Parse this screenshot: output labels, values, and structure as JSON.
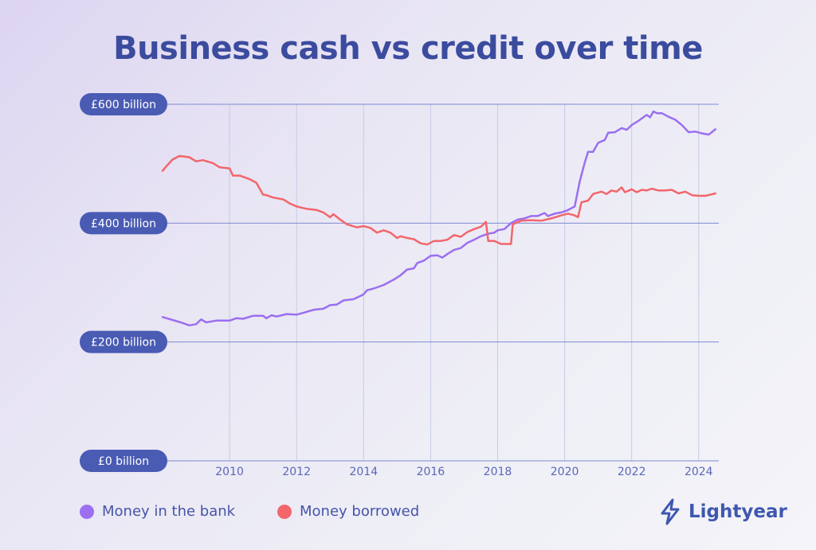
{
  "title": "Business cash vs credit over time",
  "brand": {
    "name": "Lightyear",
    "icon": "lightning-bolt-icon"
  },
  "colors": {
    "bank": "#9b6ff0",
    "borrowed": "#f2666c",
    "axis_label_bg": "#4a5bb4",
    "title": "#3b4b9e",
    "gridline": "#7f8ad0"
  },
  "legend": [
    {
      "label": "Money in the bank",
      "color": "#9b6ff0"
    },
    {
      "label": "Money borrowed",
      "color": "#f2666c"
    }
  ],
  "chart_data": {
    "type": "line",
    "title": "Business cash vs credit over time",
    "xlabel": "",
    "ylabel": "",
    "xlim": [
      2008,
      2024.6
    ],
    "ylim": [
      0,
      600
    ],
    "x_ticks": [
      2010,
      2012,
      2014,
      2016,
      2018,
      2020,
      2022,
      2024
    ],
    "y_ticks": [
      {
        "value": 0,
        "label": "£0 billion"
      },
      {
        "value": 200,
        "label": "£200 billion"
      },
      {
        "value": 400,
        "label": "£400 billion"
      },
      {
        "value": 600,
        "label": "£600 billion"
      }
    ],
    "grid": {
      "horizontal": true,
      "vertical": true
    },
    "legend_position": "bottom-left",
    "series": [
      {
        "name": "Money in the bank",
        "color": "#9b6ff0",
        "points": [
          [
            2008.0,
            242
          ],
          [
            2008.3,
            237
          ],
          [
            2008.6,
            232
          ],
          [
            2008.8,
            228
          ],
          [
            2009.0,
            230
          ],
          [
            2009.15,
            238
          ],
          [
            2009.3,
            233
          ],
          [
            2009.6,
            236
          ],
          [
            2010.0,
            236
          ],
          [
            2010.2,
            240
          ],
          [
            2010.4,
            239
          ],
          [
            2010.7,
            244
          ],
          [
            2011.0,
            244
          ],
          [
            2011.1,
            240
          ],
          [
            2011.25,
            245
          ],
          [
            2011.4,
            243
          ],
          [
            2011.7,
            247
          ],
          [
            2012.0,
            246
          ],
          [
            2012.2,
            249
          ],
          [
            2012.5,
            254
          ],
          [
            2012.8,
            256
          ],
          [
            2013.0,
            262
          ],
          [
            2013.2,
            263
          ],
          [
            2013.4,
            270
          ],
          [
            2013.7,
            272
          ],
          [
            2014.0,
            280
          ],
          [
            2014.1,
            287
          ],
          [
            2014.3,
            290
          ],
          [
            2014.6,
            296
          ],
          [
            2014.9,
            305
          ],
          [
            2015.1,
            312
          ],
          [
            2015.3,
            322
          ],
          [
            2015.5,
            324
          ],
          [
            2015.6,
            333
          ],
          [
            2015.8,
            337
          ],
          [
            2016.0,
            345
          ],
          [
            2016.2,
            346
          ],
          [
            2016.35,
            342
          ],
          [
            2016.5,
            348
          ],
          [
            2016.7,
            355
          ],
          [
            2016.9,
            358
          ],
          [
            2017.1,
            367
          ],
          [
            2017.3,
            372
          ],
          [
            2017.5,
            378
          ],
          [
            2017.7,
            382
          ],
          [
            2017.9,
            384
          ],
          [
            2018.0,
            388
          ],
          [
            2018.2,
            390
          ],
          [
            2018.4,
            400
          ],
          [
            2018.6,
            406
          ],
          [
            2018.8,
            408
          ],
          [
            2019.0,
            412
          ],
          [
            2019.2,
            412
          ],
          [
            2019.4,
            417
          ],
          [
            2019.5,
            412
          ],
          [
            2019.7,
            416
          ],
          [
            2019.9,
            418
          ],
          [
            2020.1,
            422
          ],
          [
            2020.3,
            428
          ],
          [
            2020.45,
            470
          ],
          [
            2020.6,
            502
          ],
          [
            2020.7,
            520
          ],
          [
            2020.85,
            520
          ],
          [
            2021.0,
            535
          ],
          [
            2021.2,
            540
          ],
          [
            2021.3,
            552
          ],
          [
            2021.5,
            553
          ],
          [
            2021.7,
            560
          ],
          [
            2021.85,
            557
          ],
          [
            2022.0,
            565
          ],
          [
            2022.2,
            572
          ],
          [
            2022.35,
            578
          ],
          [
            2022.45,
            582
          ],
          [
            2022.55,
            578
          ],
          [
            2022.65,
            588
          ],
          [
            2022.75,
            585
          ],
          [
            2022.9,
            585
          ],
          [
            2023.1,
            579
          ],
          [
            2023.3,
            574
          ],
          [
            2023.5,
            565
          ],
          [
            2023.7,
            553
          ],
          [
            2023.9,
            554
          ],
          [
            2024.1,
            551
          ],
          [
            2024.3,
            549
          ],
          [
            2024.5,
            558
          ]
        ]
      },
      {
        "name": "Money borrowed",
        "color": "#f2666c",
        "points": [
          [
            2008.0,
            488
          ],
          [
            2008.15,
            498
          ],
          [
            2008.3,
            507
          ],
          [
            2008.5,
            513
          ],
          [
            2008.8,
            511
          ],
          [
            2009.0,
            504
          ],
          [
            2009.2,
            506
          ],
          [
            2009.5,
            501
          ],
          [
            2009.7,
            494
          ],
          [
            2010.0,
            492
          ],
          [
            2010.1,
            480
          ],
          [
            2010.3,
            480
          ],
          [
            2010.6,
            474
          ],
          [
            2010.8,
            468
          ],
          [
            2011.0,
            448
          ],
          [
            2011.1,
            447
          ],
          [
            2011.3,
            443
          ],
          [
            2011.6,
            440
          ],
          [
            2011.8,
            433
          ],
          [
            2012.0,
            428
          ],
          [
            2012.3,
            424
          ],
          [
            2012.6,
            422
          ],
          [
            2012.8,
            418
          ],
          [
            2013.0,
            410
          ],
          [
            2013.1,
            415
          ],
          [
            2013.3,
            406
          ],
          [
            2013.5,
            398
          ],
          [
            2013.8,
            393
          ],
          [
            2014.0,
            395
          ],
          [
            2014.2,
            392
          ],
          [
            2014.4,
            384
          ],
          [
            2014.6,
            388
          ],
          [
            2014.8,
            384
          ],
          [
            2015.0,
            375
          ],
          [
            2015.1,
            378
          ],
          [
            2015.3,
            375
          ],
          [
            2015.5,
            373
          ],
          [
            2015.7,
            366
          ],
          [
            2015.9,
            364
          ],
          [
            2016.1,
            370
          ],
          [
            2016.3,
            370
          ],
          [
            2016.5,
            372
          ],
          [
            2016.7,
            380
          ],
          [
            2016.9,
            377
          ],
          [
            2017.1,
            385
          ],
          [
            2017.3,
            390
          ],
          [
            2017.5,
            394
          ],
          [
            2017.65,
            402
          ],
          [
            2017.72,
            370
          ],
          [
            2017.9,
            370
          ],
          [
            2018.1,
            365
          ],
          [
            2018.4,
            365
          ],
          [
            2018.45,
            398
          ],
          [
            2018.7,
            404
          ],
          [
            2019.0,
            405
          ],
          [
            2019.3,
            404
          ],
          [
            2019.6,
            408
          ],
          [
            2019.9,
            413
          ],
          [
            2020.1,
            416
          ],
          [
            2020.3,
            413
          ],
          [
            2020.4,
            410
          ],
          [
            2020.5,
            435
          ],
          [
            2020.7,
            438
          ],
          [
            2020.85,
            449
          ],
          [
            2021.1,
            453
          ],
          [
            2021.25,
            449
          ],
          [
            2021.4,
            455
          ],
          [
            2021.55,
            453
          ],
          [
            2021.7,
            460
          ],
          [
            2021.8,
            452
          ],
          [
            2022.0,
            457
          ],
          [
            2022.15,
            452
          ],
          [
            2022.3,
            456
          ],
          [
            2022.45,
            455
          ],
          [
            2022.6,
            458
          ],
          [
            2022.8,
            455
          ],
          [
            2023.0,
            455
          ],
          [
            2023.2,
            456
          ],
          [
            2023.4,
            450
          ],
          [
            2023.6,
            453
          ],
          [
            2023.8,
            447
          ],
          [
            2024.0,
            446
          ],
          [
            2024.2,
            446
          ],
          [
            2024.5,
            450
          ]
        ]
      }
    ]
  }
}
